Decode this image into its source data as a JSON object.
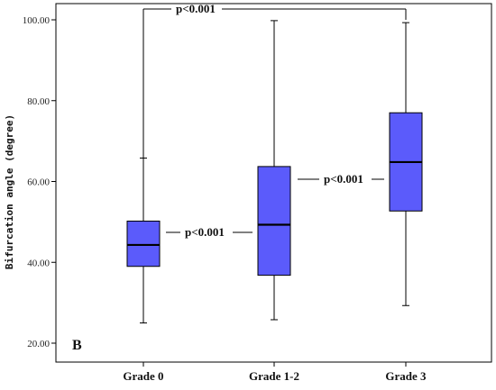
{
  "chart_data": {
    "type": "boxplot",
    "panel_label": "B",
    "ylabel": "Bifurcation angle (degree)",
    "xlabel": "",
    "ylim": [
      19.5,
      104
    ],
    "yticks": [
      20,
      40,
      60,
      80,
      100
    ],
    "ytick_labels": [
      "20.00",
      "40.00",
      "60.00",
      "80.00",
      "100.00"
    ],
    "categories": [
      "Grade 0",
      "Grade 1-2",
      "Grade 3"
    ],
    "boxes": [
      {
        "whisker_low": 25.0,
        "q1": 39.0,
        "median": 44.3,
        "q3": 50.2,
        "whisker_high": 65.8
      },
      {
        "whisker_low": 25.8,
        "q1": 36.8,
        "median": 49.3,
        "q3": 63.7,
        "whisker_high": 99.8
      },
      {
        "whisker_low": 29.3,
        "q1": 52.7,
        "median": 64.8,
        "q3": 77.0,
        "whisker_high": 99.3
      }
    ],
    "annotations": [
      {
        "text": "p<0.001",
        "between": [
          "Grade 0",
          "Grade 1-2"
        ]
      },
      {
        "text": "p<0.001",
        "between": [
          "Grade 1-2",
          "Grade 3"
        ]
      },
      {
        "text": "p<0.001",
        "between": [
          "Grade 0",
          "Grade 3"
        ]
      }
    ],
    "box_color": "#5b5bfb",
    "grid": false
  }
}
